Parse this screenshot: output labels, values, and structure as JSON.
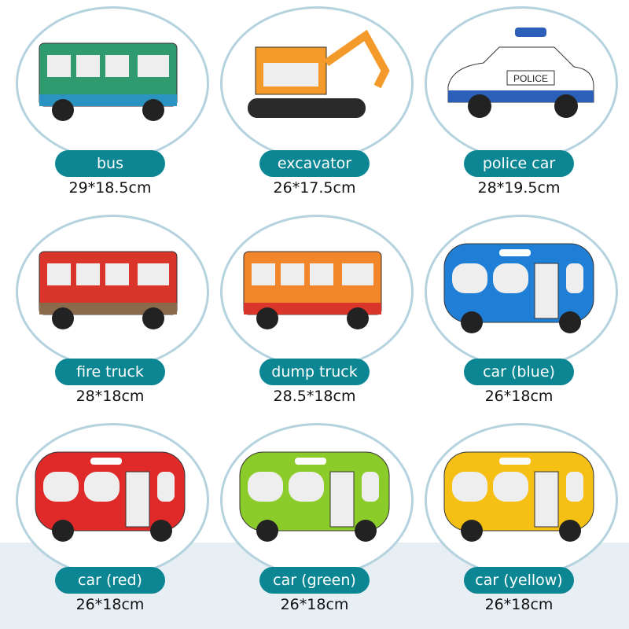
{
  "items": [
    {
      "label": "bus",
      "size": "29*18.5cm",
      "color": "#2f9b6e",
      "accent": "#2a93c2"
    },
    {
      "label": "excavator",
      "size": "26*17.5cm",
      "color": "#f39a2a",
      "accent": "#2a2a2a"
    },
    {
      "label": "police car",
      "size": "28*19.5cm",
      "color": "#ffffff",
      "accent": "#2c5fb8",
      "badge": "POLICE"
    },
    {
      "label": "fire truck",
      "size": "28*18cm",
      "color": "#d9352b",
      "accent": "#8a6a4a"
    },
    {
      "label": "dump truck",
      "size": "28.5*18cm",
      "color": "#f2862a",
      "accent": "#d9352b"
    },
    {
      "label": "car (blue)",
      "size": "26*18cm",
      "color": "#1f7fd6",
      "accent": "#1f7fd6"
    },
    {
      "label": "car (red)",
      "size": "26*18cm",
      "color": "#e02a2a",
      "accent": "#e02a2a"
    },
    {
      "label": "car (green)",
      "size": "26*18cm",
      "color": "#8ccc2a",
      "accent": "#8ccc2a"
    },
    {
      "label": "car (yellow)",
      "size": "26*18cm",
      "color": "#f5bf14",
      "accent": "#f5bf14"
    }
  ]
}
